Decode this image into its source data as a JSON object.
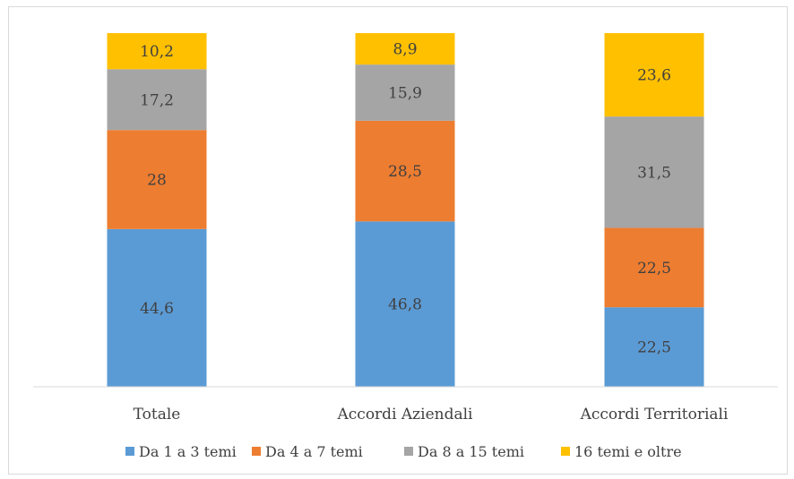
{
  "chart_data": {
    "type": "bar",
    "stacked": true,
    "percent_stacked": true,
    "categories": [
      "Totale",
      "Accordi Aziendali",
      "Accordi Territoriali"
    ],
    "series": [
      {
        "name": "Da 1 a 3 temi",
        "values": [
          44.6,
          46.8,
          22.5
        ],
        "labels": [
          "44,6",
          "46,8",
          "22,5"
        ],
        "color": "#5b9bd5"
      },
      {
        "name": "Da 4 a 7 temi",
        "values": [
          28,
          28.5,
          22.5
        ],
        "labels": [
          "28",
          "28,5",
          "22,5"
        ],
        "color": "#ed7d31"
      },
      {
        "name": "Da 8 a 15 temi",
        "values": [
          17.2,
          15.9,
          31.5
        ],
        "labels": [
          "17,2",
          "15,9",
          "31,5"
        ],
        "color": "#a5a5a5"
      },
      {
        "name": "16 temi e oltre",
        "values": [
          10.2,
          8.9,
          23.6
        ],
        "labels": [
          "10,2",
          "8,9",
          "23,6"
        ],
        "color": "#ffc000"
      }
    ],
    "legend_position": "bottom",
    "grid": false
  }
}
